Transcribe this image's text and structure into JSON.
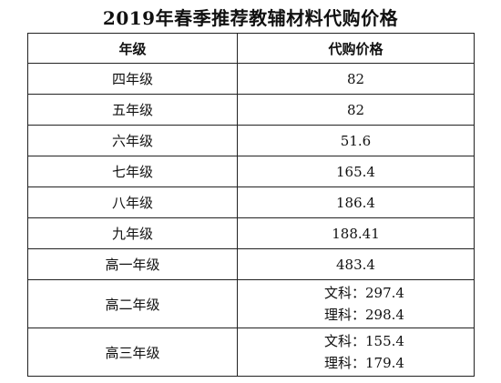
{
  "title": "2019年春季推荐教辅材料代购价格",
  "table": {
    "headers": [
      "年级",
      "代购价格"
    ],
    "rows": [
      {
        "grade": "四年级",
        "price": "82"
      },
      {
        "grade": "五年级",
        "price": "82"
      },
      {
        "grade": "六年级",
        "price": "51.6"
      },
      {
        "grade": "七年级",
        "price": "165.4"
      },
      {
        "grade": "八年级",
        "price": "186.4"
      },
      {
        "grade": "九年级",
        "price": "188.41"
      },
      {
        "grade": "高一年级",
        "price": "483.4"
      }
    ],
    "split_rows": [
      {
        "grade": "高二年级",
        "prices": [
          "文科：297.4",
          "理科：298.4"
        ]
      },
      {
        "grade": "高三年级",
        "prices": [
          "文科：155.4",
          "理科：179.4"
        ]
      }
    ]
  }
}
